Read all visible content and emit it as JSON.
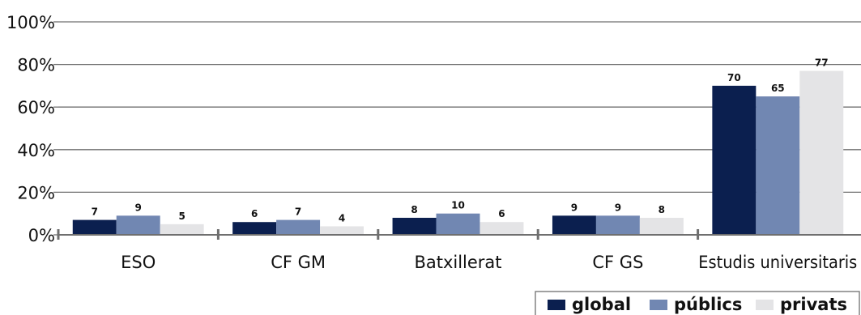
{
  "chart_data": {
    "type": "bar",
    "categories": [
      "ESO",
      "CF GM",
      "Batxillerat",
      "CF GS",
      "Estudis universitaris"
    ],
    "series": [
      {
        "name": "global",
        "values": [
          7,
          6,
          8,
          9,
          70
        ],
        "color": "#0b1f4f"
      },
      {
        "name": "públics",
        "values": [
          9,
          7,
          10,
          9,
          65
        ],
        "color": "#7187b2"
      },
      {
        "name": "privats",
        "values": [
          5,
          4,
          6,
          8,
          77
        ],
        "color": "#e4e4e6"
      }
    ],
    "y_ticks": [
      "0%",
      "20%",
      "40%",
      "60%",
      "80%",
      "100%"
    ],
    "ylim": [
      0,
      100
    ],
    "grid": true,
    "legend_position": "bottom-right",
    "title": "",
    "xlabel": "",
    "ylabel": ""
  }
}
